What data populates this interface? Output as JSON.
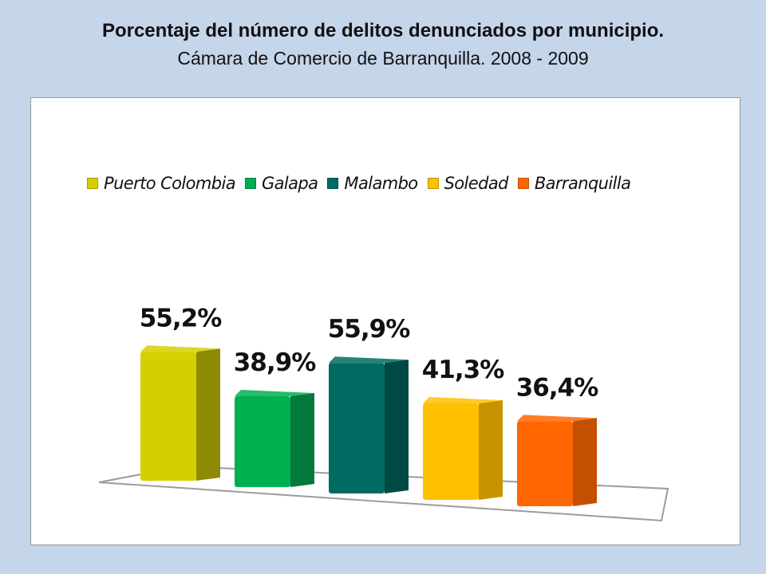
{
  "title": "Porcentaje del número de delitos denunciados por municipio.",
  "subtitle": "Cámara de Comercio de Barranquilla. 2008 - 2009",
  "chart_data": {
    "type": "bar",
    "categories": [
      "Puerto Colombia",
      "Galapa",
      "Malambo",
      "Soledad",
      "Barranquilla"
    ],
    "values": [
      55.2,
      38.9,
      55.9,
      41.3,
      36.4
    ],
    "data_labels": [
      "55,2%",
      "38,9%",
      "55,9%",
      "41,3%",
      "36,4%"
    ],
    "colors": [
      "#d6cf00",
      "#00b050",
      "#006b63",
      "#ffc000",
      "#ff6600"
    ],
    "side_colors": [
      "#8f8a05",
      "#03793a",
      "#004a44",
      "#c79300",
      "#c44f00"
    ],
    "legend": [
      {
        "label": "Puerto Colombia",
        "color": "#d6cf00"
      },
      {
        "label": "Galapa",
        "color": "#00b050"
      },
      {
        "label": "Malambo",
        "color": "#006b63"
      },
      {
        "label": "Soledad",
        "color": "#ffc000"
      },
      {
        "label": "Barranquilla",
        "color": "#ff6600"
      }
    ],
    "legend_position": "top",
    "grid": false,
    "three_d": true,
    "title": "",
    "xlabel": "",
    "ylabel": ""
  }
}
